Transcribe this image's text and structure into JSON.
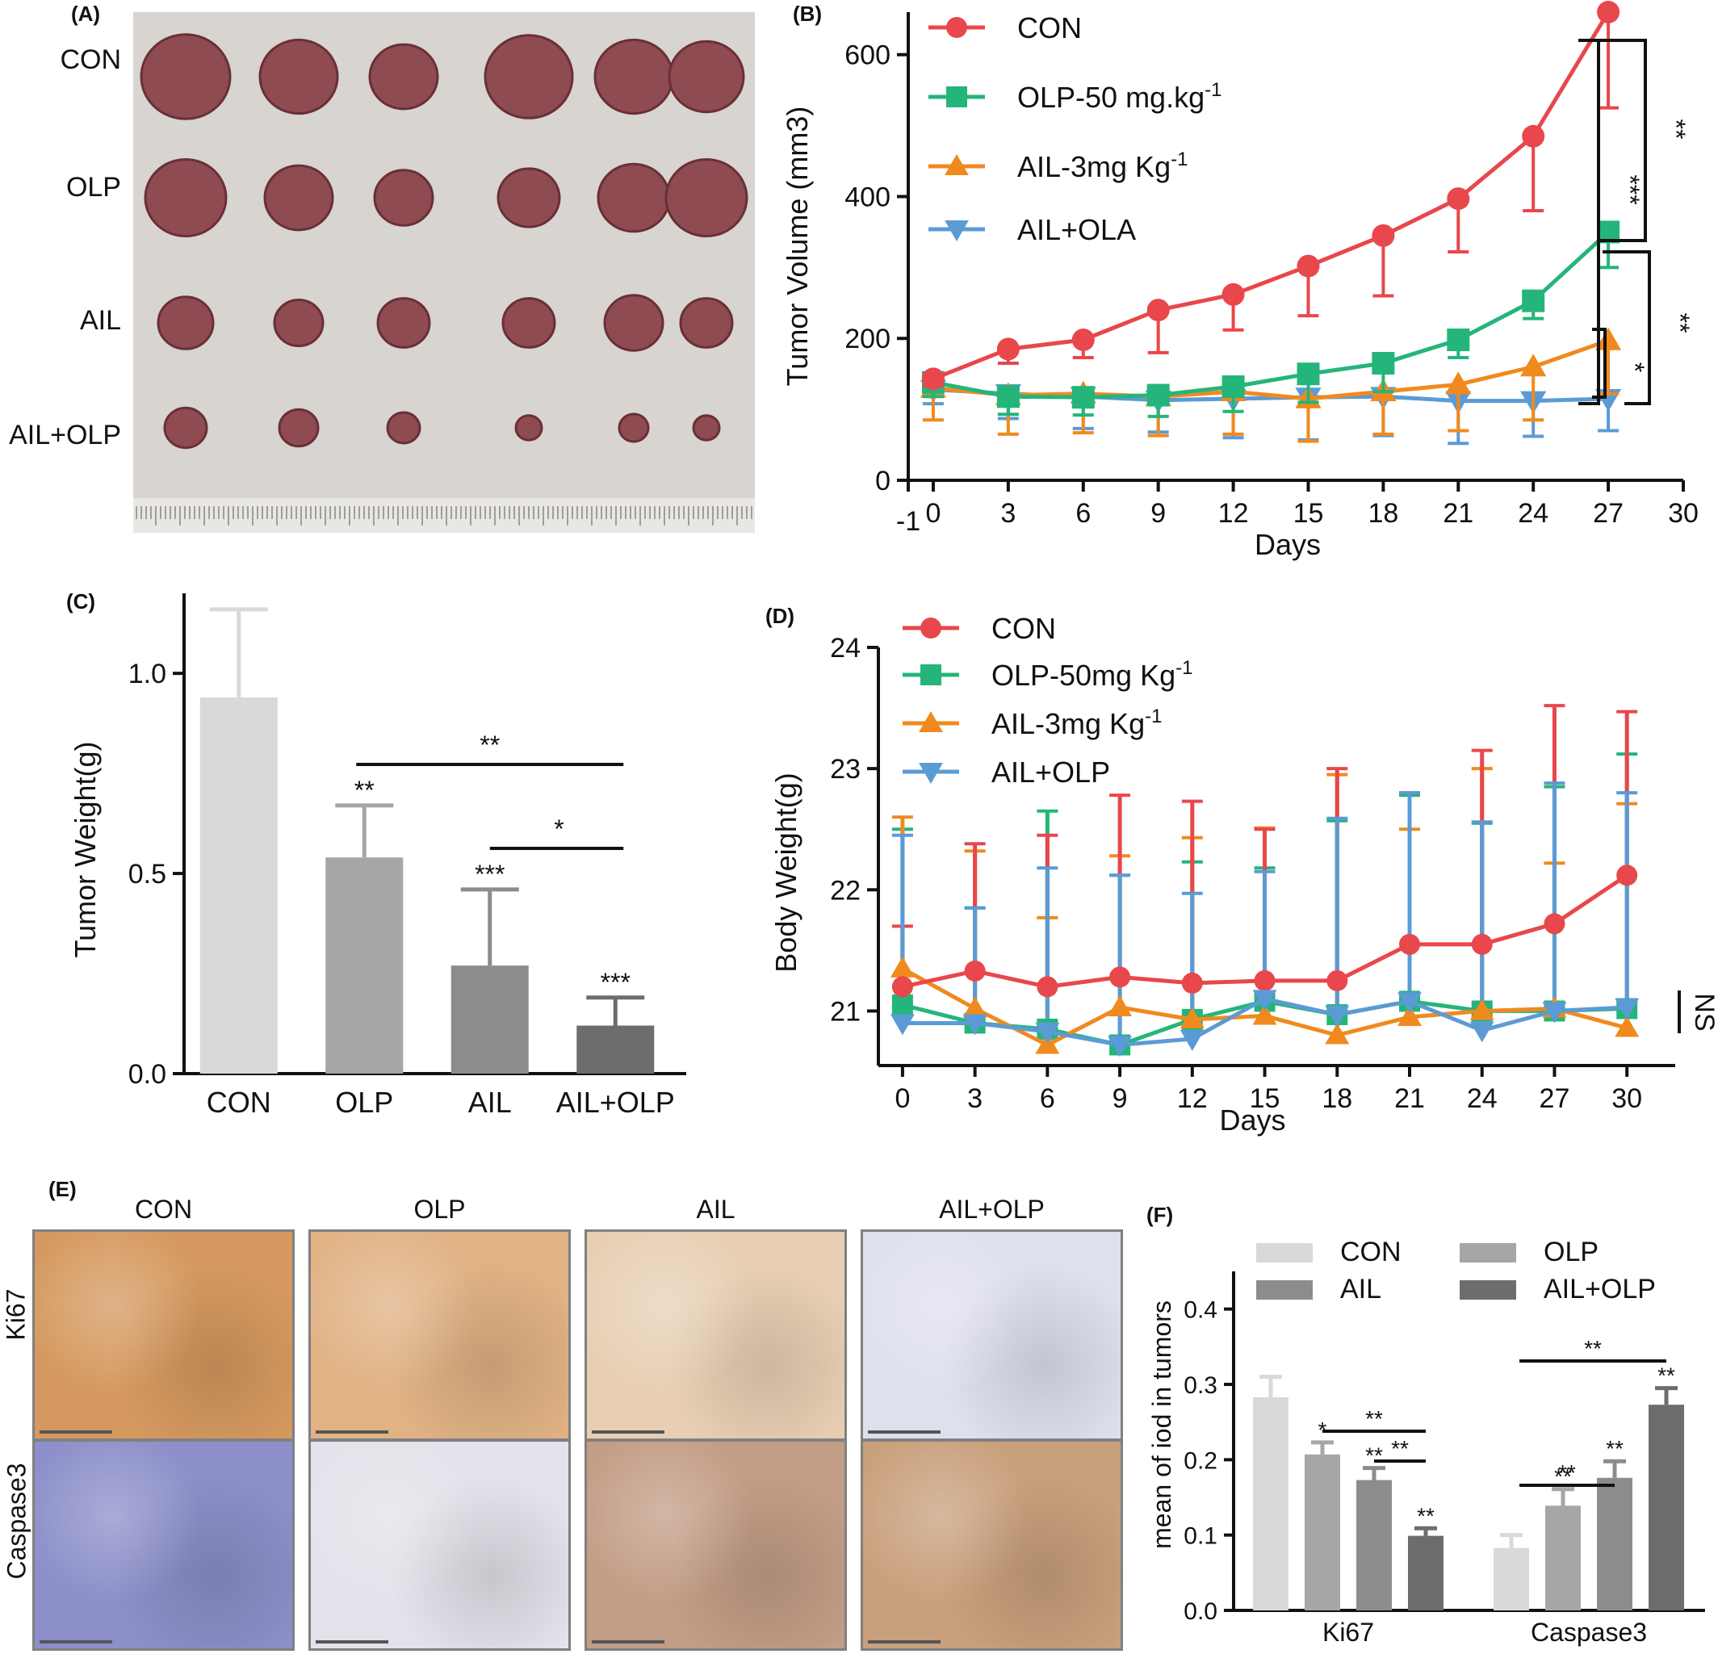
{
  "figure": {
    "panel_labels": [
      "(A)",
      "(B)",
      "(C)",
      "(D)",
      "(E)",
      "(F)"
    ]
  },
  "panel_a": {
    "row_labels": [
      "CON",
      "OLP",
      "AIL",
      "AIL+OLP"
    ],
    "colors": {
      "background": "#d8d4cf",
      "tumor": "#8e4b52",
      "tumor_dark": "#6a2f38",
      "ruler": "#e9e7e2"
    }
  },
  "chart_data": [
    {
      "id": "B",
      "type": "line",
      "xlabel": "Days",
      "ylabel": "Tumor Volume (mm3)",
      "xlim": [
        -1,
        30
      ],
      "ylim": [
        0,
        660
      ],
      "xticks": [
        -1,
        0,
        3,
        6,
        9,
        12,
        15,
        18,
        21,
        24,
        27,
        30
      ],
      "yticks": [
        0,
        200,
        400,
        600
      ],
      "x": [
        0,
        3,
        6,
        9,
        12,
        15,
        18,
        21,
        24,
        27
      ],
      "legend_position": "top-left",
      "series": [
        {
          "name": "CON",
          "marker": "circle",
          "color": "#e8474b",
          "values": [
            143,
            185,
            198,
            240,
            262,
            302,
            345,
            397,
            485,
            660
          ],
          "errors": [
            10,
            20,
            25,
            60,
            50,
            70,
            85,
            75,
            105,
            135
          ]
        },
        {
          "name_main": "OLP-50 mg.kg",
          "name_sup": "-1",
          "marker": "square",
          "color": "#24b57a",
          "values": [
            138,
            118,
            117,
            120,
            132,
            150,
            165,
            198,
            253,
            350
          ],
          "errors": [
            20,
            25,
            25,
            30,
            35,
            40,
            40,
            25,
            25,
            50
          ]
        },
        {
          "name_main": "AIL-3mg Kg",
          "name_sup": "-1",
          "marker": "triangle-up",
          "color": "#f08a1e",
          "values": [
            130,
            120,
            122,
            118,
            125,
            115,
            125,
            135,
            160,
            197
          ],
          "errors": [
            45,
            55,
            55,
            55,
            60,
            60,
            60,
            65,
            75,
            75
          ]
        },
        {
          "name": "AIL+OLA",
          "marker": "triangle-down",
          "color": "#5b9bd5",
          "values": [
            128,
            122,
            118,
            113,
            115,
            117,
            118,
            112,
            112,
            115
          ],
          "errors": [
            20,
            35,
            45,
            45,
            55,
            60,
            55,
            60,
            50,
            45
          ]
        }
      ],
      "annotations": [
        "**",
        "***",
        "**",
        "*"
      ]
    },
    {
      "id": "C",
      "type": "bar",
      "ylabel": "Tumor Weight(g)",
      "categories": [
        "CON",
        "OLP",
        "AIL",
        "AIL+OLP"
      ],
      "values": [
        0.94,
        0.54,
        0.27,
        0.12
      ],
      "errors": [
        0.22,
        0.13,
        0.19,
        0.07
      ],
      "ylim": [
        0,
        1.2
      ],
      "yticks": [
        "0.0",
        "0.5",
        "1.0"
      ],
      "bar_colors": [
        "#d9d9d9",
        "#a6a6a8",
        "#8c8c8e",
        "#6b6d6e"
      ],
      "bar_labels": [
        "",
        "**",
        "***",
        "***"
      ],
      "brackets": [
        {
          "from": "OLP",
          "to": "AIL+OLP",
          "label": "**"
        },
        {
          "from": "AIL",
          "to": "AIL+OLP",
          "label": "*"
        }
      ]
    },
    {
      "id": "D",
      "type": "line",
      "xlabel": "Days",
      "ylabel": "Body Weight(g)",
      "xlim": [
        -1,
        32
      ],
      "ylim": [
        20.55,
        24
      ],
      "xticks": [
        0,
        3,
        6,
        9,
        12,
        15,
        18,
        21,
        24,
        27,
        30
      ],
      "yticks": [
        21,
        22,
        23,
        24
      ],
      "x": [
        0,
        3,
        6,
        9,
        12,
        15,
        18,
        21,
        24,
        27,
        30
      ],
      "legend_position": "top-left",
      "annotation": "NS",
      "series": [
        {
          "name": "CON",
          "marker": "circle",
          "color": "#e8474b",
          "values": [
            21.2,
            21.33,
            21.2,
            21.28,
            21.23,
            21.25,
            21.25,
            21.55,
            21.55,
            21.72,
            22.12
          ],
          "errors": [
            0.5,
            1.05,
            1.25,
            1.5,
            1.5,
            1.25,
            1.75,
            1.25,
            1.6,
            1.8,
            1.35
          ]
        },
        {
          "name_main": "OLP-50mg Kg",
          "name_sup": "-1",
          "marker": "square",
          "color": "#24b57a",
          "values": [
            21.05,
            20.9,
            20.85,
            20.72,
            20.93,
            21.08,
            20.97,
            21.08,
            21.0,
            21.0,
            21.02
          ],
          "errors": [
            1.45,
            0.95,
            1.8,
            1.4,
            1.3,
            1.1,
            1.6,
            1.7,
            1.55,
            1.85,
            2.1
          ]
        },
        {
          "name_main": "AIL-3mg Kg",
          "name_sup": "-1",
          "marker": "triangle-up",
          "color": "#f08a1e",
          "values": [
            21.35,
            21.02,
            20.72,
            21.03,
            20.93,
            20.96,
            20.8,
            20.95,
            21.0,
            21.02,
            20.86
          ],
          "errors": [
            1.25,
            1.3,
            1.05,
            1.25,
            1.5,
            1.55,
            2.15,
            1.55,
            2.0,
            1.2,
            1.85
          ]
        },
        {
          "name": "AIL+OLP",
          "marker": "triangle-down",
          "color": "#5b9bd5",
          "values": [
            20.9,
            20.9,
            20.83,
            20.72,
            20.77,
            21.1,
            20.97,
            21.08,
            20.84,
            21.0,
            21.03
          ],
          "errors": [
            1.55,
            0.95,
            1.35,
            1.4,
            1.2,
            1.05,
            1.62,
            1.72,
            1.72,
            1.88,
            1.77
          ]
        }
      ]
    },
    {
      "id": "F",
      "type": "bar",
      "ylabel": "mean of iod in tumors",
      "categories": [
        "Ki67",
        "Caspase3"
      ],
      "ylim": [
        0,
        0.45
      ],
      "yticks": [
        "0.0",
        "0.1",
        "0.2",
        "0.3",
        "0.4"
      ],
      "legend_position": "top",
      "series": [
        {
          "name": "CON",
          "color": "#d9d9d9",
          "values": [
            0.283,
            0.083
          ],
          "errors": [
            0.027,
            0.017
          ],
          "labels": [
            "",
            ""
          ]
        },
        {
          "name": "OLP",
          "color": "#a6a6a8",
          "values": [
            0.207,
            0.139
          ],
          "errors": [
            0.016,
            0.022
          ],
          "labels": [
            "*",
            "**"
          ]
        },
        {
          "name": "AIL",
          "color": "#8c8c8e",
          "values": [
            0.173,
            0.176
          ],
          "errors": [
            0.016,
            0.022
          ],
          "labels": [
            "**",
            "**"
          ]
        },
        {
          "name": "AIL+OLP",
          "color": "#6b6d6e",
          "values": [
            0.099,
            0.273
          ],
          "errors": [
            0.01,
            0.022
          ],
          "labels": [
            "**",
            "**"
          ]
        }
      ],
      "brackets": [
        "**",
        "**",
        "**",
        "**"
      ]
    }
  ],
  "panel_e": {
    "column_labels": [
      "CON",
      "OLP",
      "AIL",
      "AIL+OLP"
    ],
    "row_labels": [
      "Ki67",
      "Caspase3"
    ],
    "tiles": [
      [
        "#d5995f",
        "#e0b284",
        "#e8cfb4",
        "#dfe0ee"
      ],
      [
        "#8c8fc9",
        "#e4e2ea",
        "#c39d86",
        "#c9a07c"
      ]
    ]
  }
}
